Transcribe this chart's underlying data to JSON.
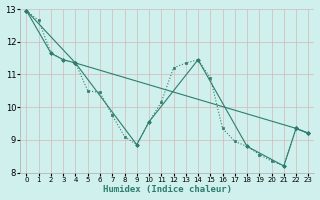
{
  "xlabel": "Humidex (Indice chaleur)",
  "bg_color": "#cff0ec",
  "grid_color": "#d4b8b8",
  "line_color": "#2e7d6e",
  "xlim": [
    -0.5,
    23.5
  ],
  "ylim": [
    8,
    13
  ],
  "xticks": [
    0,
    1,
    2,
    3,
    4,
    5,
    6,
    7,
    8,
    9,
    10,
    11,
    12,
    13,
    14,
    15,
    16,
    17,
    18,
    19,
    20,
    21,
    22,
    23
  ],
  "yticks": [
    8,
    9,
    10,
    11,
    12,
    13
  ],
  "series": [
    {
      "x": [
        0,
        1,
        2,
        3,
        4,
        5,
        6,
        7,
        8,
        9,
        10,
        11,
        12,
        13,
        14,
        15,
        16,
        17,
        18,
        19,
        20,
        21,
        22,
        23
      ],
      "y": [
        12.95,
        12.65,
        11.65,
        11.45,
        11.35,
        10.5,
        10.45,
        9.75,
        9.1,
        8.85,
        9.55,
        10.15,
        11.2,
        11.35,
        11.45,
        10.9,
        9.35,
        8.95,
        8.8,
        8.55,
        8.35,
        8.2,
        9.35,
        9.2
      ],
      "style": ":",
      "marker": "s",
      "markersize": 1.5,
      "linewidth": 0.8
    },
    {
      "x": [
        0,
        2,
        3,
        4,
        22,
        23
      ],
      "y": [
        12.95,
        11.65,
        11.45,
        11.35,
        9.35,
        9.2
      ],
      "style": "-",
      "marker": "D",
      "markersize": 2.0,
      "linewidth": 0.8
    },
    {
      "x": [
        0,
        4,
        9,
        10,
        14,
        18,
        21,
        22,
        23
      ],
      "y": [
        12.95,
        11.35,
        8.85,
        9.55,
        11.45,
        8.8,
        8.2,
        9.35,
        9.2
      ],
      "style": "-",
      "marker": "D",
      "markersize": 2.0,
      "linewidth": 0.8
    }
  ]
}
